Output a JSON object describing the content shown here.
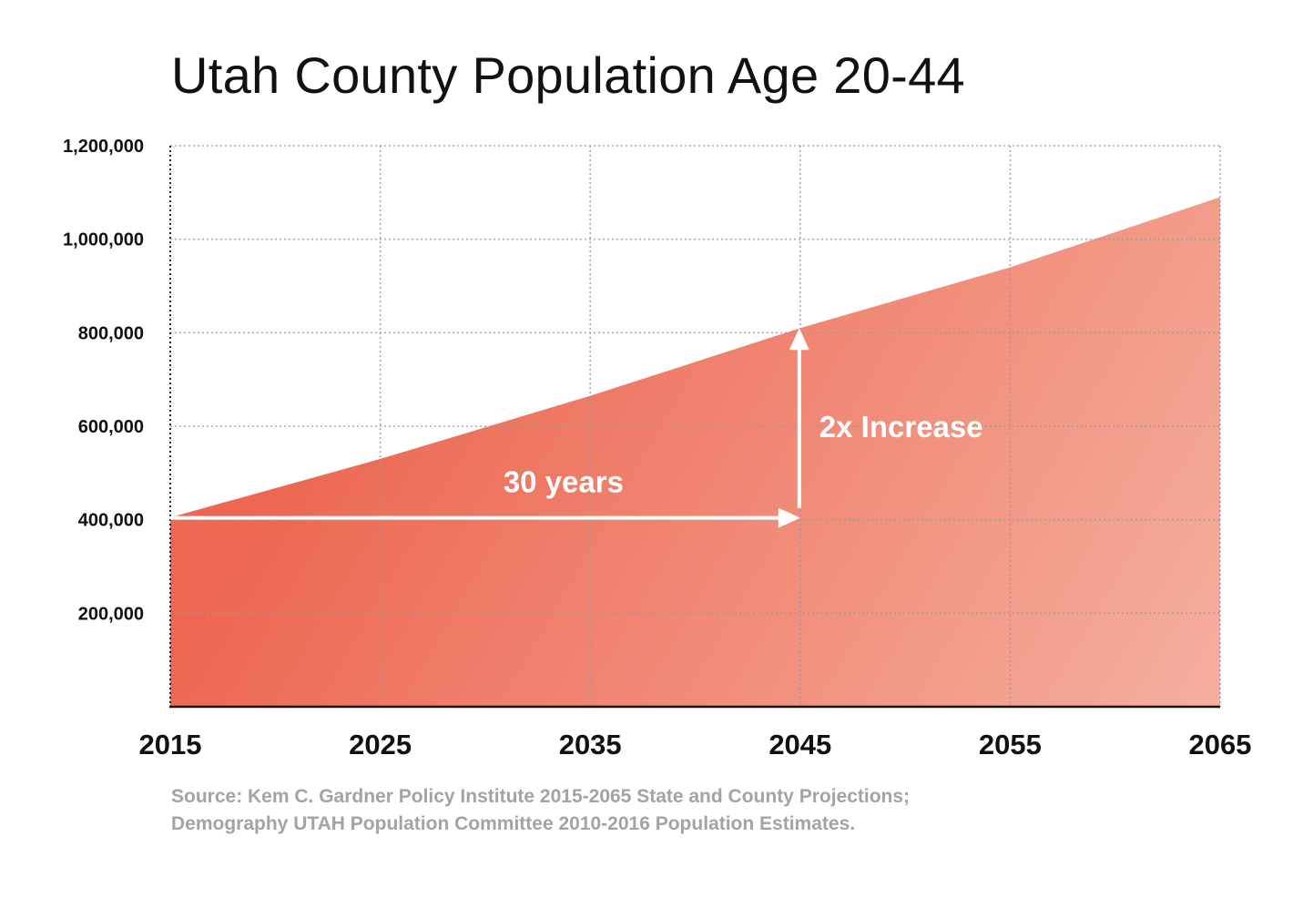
{
  "chart_data": {
    "type": "area",
    "title": "Utah County Population Age 20-44",
    "xlabel": "",
    "ylabel": "",
    "x": [
      2015,
      2025,
      2035,
      2045,
      2055,
      2065
    ],
    "x_tick_labels": [
      "2015",
      "2025",
      "2035",
      "2045",
      "2055",
      "2065"
    ],
    "y_tick_values": [
      200000,
      400000,
      600000,
      800000,
      1000000,
      1200000
    ],
    "y_tick_labels": [
      "200,000",
      "400,000",
      "600,000",
      "800,000",
      "1,000,000",
      "1,200,000"
    ],
    "xlim": [
      2015,
      2065
    ],
    "ylim": [
      0,
      1200000
    ],
    "grid": true,
    "series": [
      {
        "values": [
          405000,
          530000,
          665000,
          810000,
          940000,
          1090000
        ]
      }
    ],
    "annotations": [
      {
        "text": "30 years",
        "kind": "horizontal-arrow",
        "from_x": 2015,
        "to_x": 2045,
        "y": 400000
      },
      {
        "text": "2x Increase",
        "kind": "vertical-arrow",
        "x": 2045,
        "from_y": 425000,
        "to_y": 810000
      }
    ],
    "colors": {
      "fill_top": "#ec6852",
      "fill_bottom": "#f6b7a8",
      "arrow": "#ffffff",
      "grid": "#9a9a9a",
      "axis": "#111111"
    }
  },
  "source": {
    "line1": "Source: Kem C. Gardner Policy Institute 2015-2065 State and County Projections;",
    "line2": "Demography UTAH Population Committee 2010-2016 Population Estimates."
  }
}
